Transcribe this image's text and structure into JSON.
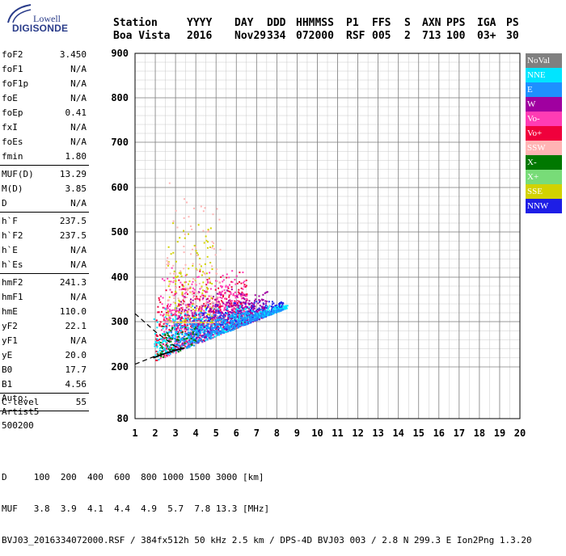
{
  "logo": {
    "line1": "Lowell",
    "line2": "DIGISONDE"
  },
  "header": {
    "row1": [
      "Station",
      "YYYY",
      "DAY",
      "DDD",
      "HHMMSS",
      "P1",
      "FFS",
      "S",
      "AXN",
      "PPS",
      "IGA",
      "PS"
    ],
    "row2": [
      "Boa Vista",
      "2016",
      "Nov29",
      "334",
      "072000",
      "RSF",
      "005",
      "2",
      "713",
      "100",
      "03+",
      "30"
    ]
  },
  "params": [
    {
      "label": "foF2",
      "value": "3.450"
    },
    {
      "label": "foF1",
      "value": "N/A"
    },
    {
      "label": "foF1p",
      "value": "N/A"
    },
    {
      "label": "foE",
      "value": "N/A"
    },
    {
      "label": "foEp",
      "value": "0.41"
    },
    {
      "label": "fxI",
      "value": "N/A"
    },
    {
      "label": "foEs",
      "value": "N/A"
    },
    {
      "label": "fmin",
      "value": "1.80"
    },
    {
      "sep": true
    },
    {
      "label": "MUF(D)",
      "value": "13.29"
    },
    {
      "label": "M(D)",
      "value": "3.85"
    },
    {
      "label": "D",
      "value": "N/A"
    },
    {
      "sep": true
    },
    {
      "label": "h`F",
      "value": "237.5"
    },
    {
      "label": "h`F2",
      "value": "237.5"
    },
    {
      "label": "h`E",
      "value": "N/A"
    },
    {
      "label": "h`Es",
      "value": "N/A"
    },
    {
      "sep": true
    },
    {
      "label": "hmF2",
      "value": "241.3"
    },
    {
      "label": "hmF1",
      "value": "N/A"
    },
    {
      "label": "hmE",
      "value": "110.0"
    },
    {
      "label": "yF2",
      "value": "22.1"
    },
    {
      "label": "yF1",
      "value": "N/A"
    },
    {
      "label": "yE",
      "value": "20.0"
    },
    {
      "label": "B0",
      "value": "17.7"
    },
    {
      "label": "B1",
      "value": "4.56"
    },
    {
      "sep": true
    },
    {
      "label": "C-level",
      "value": "55"
    },
    {
      "sep": true
    }
  ],
  "auto": {
    "line1": "Auto:",
    "line2": "Artist5",
    "line3": "500200"
  },
  "legend": [
    {
      "label": "NoVal",
      "bg": "#808080",
      "fg": "#ffffff"
    },
    {
      "label": "NNE",
      "bg": "#00e5ff",
      "fg": "#ffffff"
    },
    {
      "label": "E",
      "bg": "#1e90ff",
      "fg": "#ffffff"
    },
    {
      "label": "W",
      "bg": "#a000a0",
      "fg": "#ffffff"
    },
    {
      "label": "Vo-",
      "bg": "#ff3cb4",
      "fg": "#ffffff"
    },
    {
      "label": "Vo+",
      "bg": "#f0003c",
      "fg": "#ffffff"
    },
    {
      "label": "SSW",
      "bg": "#ffb4b4",
      "fg": "#ffffff"
    },
    {
      "label": "X-",
      "bg": "#007800",
      "fg": "#ffffff"
    },
    {
      "label": "X+",
      "bg": "#78dc78",
      "fg": "#ffffff"
    },
    {
      "label": "SSE",
      "bg": "#d2d200",
      "fg": "#ffffff"
    },
    {
      "label": "NNW",
      "bg": "#1e1ee6",
      "fg": "#ffffff"
    }
  ],
  "footer": {
    "line1": "D     100  200  400  600  800 1000 1500 3000 [km]",
    "line2": "MUF   3.8  3.9  4.1  4.4  4.9  5.7  7.8 13.3 [MHz]",
    "line3": "BVJ03_2016334072000.RSF / 384fx512h 50 kHz 2.5 km / DPS-4D BVJ03 003 / 2.8 N 299.3 E Ion2Png 1.3.20"
  },
  "chart_data": {
    "type": "scatter",
    "title": "",
    "xlabel": "",
    "ylabel": "",
    "xlim": [
      1,
      20
    ],
    "ylim": [
      80,
      900
    ],
    "x_ticks": [
      1,
      2,
      3,
      4,
      5,
      6,
      7,
      8,
      9,
      10,
      11,
      12,
      13,
      14,
      15,
      16,
      17,
      18,
      19,
      20
    ],
    "y_ticks": [
      80,
      200,
      300,
      400,
      500,
      600,
      700,
      800,
      900
    ],
    "grid": true,
    "legend_position": "right",
    "echo_clusters": [
      {
        "mode": "Vo+",
        "xlim": [
          2.0,
          6.5
        ],
        "ylim": [
          215,
          420
        ]
      },
      {
        "mode": "Vo-",
        "xlim": [
          2.2,
          6.5
        ],
        "ylim": [
          220,
          430
        ]
      },
      {
        "mode": "NNW",
        "xlim": [
          3.8,
          8.3
        ],
        "ylim": [
          250,
          350
        ]
      },
      {
        "mode": "W",
        "xlim": [
          3.0,
          7.5
        ],
        "ylim": [
          240,
          380
        ]
      },
      {
        "mode": "NNE",
        "xlim": [
          1.9,
          8.5
        ],
        "ylim": [
          210,
          340
        ]
      },
      {
        "mode": "E",
        "xlim": [
          2.5,
          8.3
        ],
        "ylim": [
          230,
          330
        ]
      },
      {
        "mode": "SSE",
        "xlim": [
          2.5,
          4.8
        ],
        "ylim": [
          300,
          550
        ]
      },
      {
        "mode": "SSW",
        "xlim": [
          2.5,
          5.2
        ],
        "ylim": [
          300,
          620
        ]
      },
      {
        "mode": "X-",
        "xlim": [
          2.0,
          4.0
        ],
        "ylim": [
          220,
          300
        ]
      }
    ],
    "trace_solid": [
      [
        1.9,
        220
      ],
      [
        2.5,
        230
      ],
      [
        3.0,
        237
      ],
      [
        3.45,
        242
      ]
    ],
    "trace_dashed": [
      [
        1.0,
        318
      ],
      [
        2.0,
        278
      ],
      [
        3.0,
        245
      ],
      [
        3.45,
        241
      ]
    ],
    "trace_lower_dashed": [
      [
        1.0,
        206
      ],
      [
        2.0,
        224
      ],
      [
        3.0,
        236
      ]
    ]
  }
}
